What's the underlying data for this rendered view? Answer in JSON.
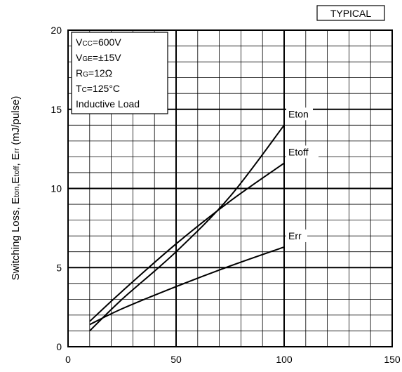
{
  "chart_data": {
    "type": "line",
    "title": "",
    "badge": "TYPICAL",
    "ylabel_parts": [
      {
        "t": "Switching Loss, E",
        "sub": false
      },
      {
        "t": "ton",
        "sub": true
      },
      {
        "t": ",E",
        "sub": false
      },
      {
        "t": "toff",
        "sub": true
      },
      {
        "t": ", E",
        "sub": false
      },
      {
        "t": "rr",
        "sub": true
      },
      {
        "t": " (mJ/pulse)",
        "sub": false
      }
    ],
    "xlabel": "",
    "xlim": [
      0,
      150
    ],
    "ylim": [
      0,
      20
    ],
    "xticks": [
      0,
      50,
      100,
      150
    ],
    "yticks": [
      0,
      5,
      10,
      15,
      20
    ],
    "grid": true,
    "conditions": [
      [
        {
          "t": "V",
          "sub": false
        },
        {
          "t": "CC",
          "sub": true
        },
        {
          "t": "=600V",
          "sub": false
        }
      ],
      [
        {
          "t": "V",
          "sub": false
        },
        {
          "t": "GE",
          "sub": true
        },
        {
          "t": "=±15V",
          "sub": false
        }
      ],
      [
        {
          "t": "R",
          "sub": false
        },
        {
          "t": "G",
          "sub": true
        },
        {
          "t": "=12Ω",
          "sub": false
        }
      ],
      [
        {
          "t": "T",
          "sub": false
        },
        {
          "t": "C",
          "sub": true
        },
        {
          "t": "=125°C",
          "sub": false
        }
      ],
      [
        {
          "t": "Inductive Load",
          "sub": false
        }
      ]
    ],
    "series": [
      {
        "name": "Eton",
        "x": [
          10,
          25,
          50,
          75,
          100
        ],
        "y": [
          1.0,
          3.0,
          6.0,
          9.5,
          14.0
        ]
      },
      {
        "name": "Etoff",
        "x": [
          10,
          25,
          50,
          75,
          100
        ],
        "y": [
          1.6,
          3.5,
          6.5,
          9.2,
          11.6
        ]
      },
      {
        "name": "Err",
        "x": [
          10,
          25,
          50,
          75,
          100
        ],
        "y": [
          1.4,
          2.4,
          3.8,
          5.1,
          6.3
        ]
      }
    ]
  }
}
